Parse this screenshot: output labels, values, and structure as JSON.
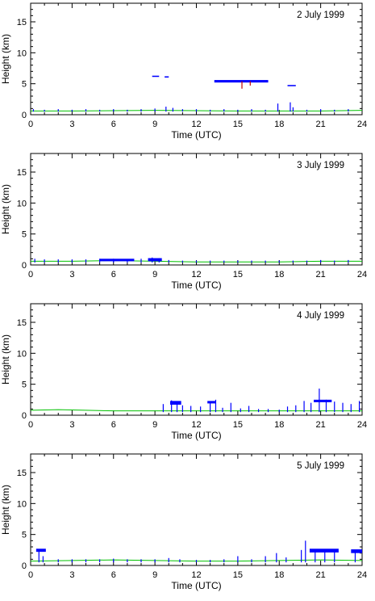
{
  "chart_data": [
    {
      "type": "scatter",
      "title": "2 July 1999",
      "xlabel": "Time (UTC)",
      "ylabel": "Height (km)",
      "xlim": [
        0,
        24
      ],
      "ylim": [
        0,
        18
      ],
      "xticks": [
        0,
        3,
        6,
        9,
        12,
        15,
        18,
        21,
        24
      ],
      "yticks": [
        0,
        5,
        10,
        15
      ],
      "grid": false,
      "series": [
        {
          "color": "#00c000",
          "line": [
            [
              0,
              0.6
            ],
            [
              3,
              0.6
            ],
            [
              6,
              0.65
            ],
            [
              9,
              0.7
            ],
            [
              12,
              0.65
            ],
            [
              15,
              0.6
            ],
            [
              18,
              0.6
            ],
            [
              21,
              0.6
            ],
            [
              24,
              0.7
            ]
          ]
        },
        {
          "color": "#0000ff",
          "segments": [
            [
              0.2,
              0.5,
              0.9
            ],
            [
              1.0,
              0.5,
              0.8
            ],
            [
              2.0,
              0.5,
              0.9
            ],
            [
              3.0,
              0.5,
              0.8
            ],
            [
              4.0,
              0.5,
              0.9
            ],
            [
              5.0,
              0.5,
              0.8
            ],
            [
              6.0,
              0.5,
              0.9
            ],
            [
              7.0,
              0.5,
              0.8
            ],
            [
              8.0,
              0.5,
              0.9
            ],
            [
              9.0,
              0.5,
              1.0
            ],
            [
              9.8,
              0.5,
              1.3
            ],
            [
              10.3,
              0.5,
              1.1
            ],
            [
              11.0,
              0.5,
              0.9
            ],
            [
              12.0,
              0.5,
              0.9
            ],
            [
              13.0,
              0.5,
              0.8
            ],
            [
              14.0,
              0.5,
              0.9
            ],
            [
              15.0,
              0.5,
              0.8
            ],
            [
              16.0,
              0.5,
              0.9
            ],
            [
              17.0,
              0.5,
              0.8
            ],
            [
              17.9,
              0.5,
              1.8
            ],
            [
              18.8,
              0.5,
              2.0
            ],
            [
              19.0,
              0.5,
              1.2
            ],
            [
              20.0,
              0.5,
              0.8
            ],
            [
              21.0,
              0.5,
              0.9
            ],
            [
              22.0,
              0.5,
              0.8
            ],
            [
              23.0,
              0.5,
              0.9
            ]
          ],
          "layers": [
            [
              8.8,
              9.3,
              6.1,
              6.3
            ],
            [
              9.7,
              10.0,
              6.0,
              6.2
            ],
            [
              13.3,
              17.2,
              5.2,
              5.6
            ],
            [
              18.6,
              19.2,
              4.6,
              4.8
            ]
          ]
        },
        {
          "color": "#c00000",
          "segments": [
            [
              15.3,
              4.2,
              5.4
            ],
            [
              15.9,
              4.7,
              5.4
            ]
          ]
        }
      ]
    },
    {
      "type": "scatter",
      "title": "3 July 1999",
      "xlabel": "Time (UTC)",
      "ylabel": "Height (km)",
      "xlim": [
        0,
        24
      ],
      "ylim": [
        0,
        18
      ],
      "xticks": [
        0,
        3,
        6,
        9,
        12,
        15,
        18,
        21,
        24
      ],
      "yticks": [
        0,
        5,
        10,
        15
      ],
      "grid": false,
      "series": [
        {
          "color": "#00c000",
          "line": [
            [
              0,
              0.6
            ],
            [
              3,
              0.6
            ],
            [
              6,
              0.7
            ],
            [
              9,
              0.6
            ],
            [
              12,
              0.5
            ],
            [
              15,
              0.5
            ],
            [
              18,
              0.5
            ],
            [
              21,
              0.6
            ],
            [
              24,
              0.6
            ]
          ]
        },
        {
          "color": "#0000ff",
          "segments": [
            [
              0.3,
              0.4,
              1.0
            ],
            [
              1.0,
              0.4,
              0.9
            ],
            [
              2.0,
              0.4,
              0.9
            ],
            [
              3.0,
              0.4,
              0.9
            ],
            [
              4.0,
              0.4,
              0.9
            ],
            [
              5.0,
              0.4,
              1.0
            ],
            [
              6.0,
              0.4,
              1.0
            ],
            [
              7.0,
              0.4,
              0.9
            ],
            [
              8.0,
              0.4,
              1.0
            ],
            [
              8.8,
              0.4,
              1.2
            ],
            [
              9.3,
              0.4,
              1.1
            ],
            [
              10.0,
              0.4,
              0.8
            ],
            [
              11.0,
              0.4,
              0.7
            ],
            [
              12.0,
              0.4,
              0.7
            ],
            [
              13.0,
              0.4,
              0.7
            ],
            [
              14.0,
              0.4,
              0.7
            ],
            [
              15.0,
              0.4,
              0.7
            ],
            [
              16.0,
              0.4,
              0.7
            ],
            [
              17.0,
              0.4,
              0.7
            ],
            [
              18.0,
              0.4,
              0.7
            ],
            [
              19.0,
              0.4,
              0.7
            ],
            [
              20.0,
              0.4,
              0.7
            ],
            [
              21.0,
              0.4,
              0.8
            ],
            [
              22.0,
              0.4,
              0.7
            ],
            [
              23.0,
              0.4,
              0.8
            ]
          ],
          "layers": [
            [
              5.0,
              7.5,
              0.6,
              1.0
            ],
            [
              8.5,
              9.5,
              0.6,
              1.1
            ]
          ]
        }
      ]
    },
    {
      "type": "scatter",
      "title": "4 July 1999",
      "xlabel": "Time (UTC)",
      "ylabel": "Height (km)",
      "xlim": [
        0,
        24
      ],
      "ylim": [
        0,
        18
      ],
      "xticks": [
        0,
        3,
        6,
        9,
        12,
        15,
        18,
        21,
        24
      ],
      "yticks": [
        0,
        5,
        10,
        15
      ],
      "grid": false,
      "series": [
        {
          "color": "#00c000",
          "line": [
            [
              0,
              0.8
            ],
            [
              2,
              0.9
            ],
            [
              4,
              0.8
            ],
            [
              6,
              0.7
            ],
            [
              9,
              0.7
            ],
            [
              12,
              0.7
            ],
            [
              15,
              0.7
            ],
            [
              18,
              0.7
            ],
            [
              21,
              0.7
            ],
            [
              24,
              0.7
            ]
          ]
        },
        {
          "color": "#0000ff",
          "segments": [
            [
              9.6,
              0.5,
              1.8
            ],
            [
              10.2,
              0.5,
              2.4
            ],
            [
              10.6,
              0.5,
              2.0
            ],
            [
              11.0,
              0.5,
              1.6
            ],
            [
              11.6,
              0.5,
              1.5
            ],
            [
              12.3,
              0.5,
              1.4
            ],
            [
              13.0,
              0.5,
              2.0
            ],
            [
              13.4,
              0.5,
              2.5
            ],
            [
              13.9,
              0.5,
              1.2
            ],
            [
              14.5,
              0.5,
              2.0
            ],
            [
              15.2,
              0.5,
              1.1
            ],
            [
              15.8,
              0.5,
              1.5
            ],
            [
              16.5,
              0.5,
              1.0
            ],
            [
              17.2,
              0.5,
              1.0
            ],
            [
              18.0,
              0.5,
              0.9
            ],
            [
              18.6,
              0.5,
              1.4
            ],
            [
              19.2,
              0.5,
              1.6
            ],
            [
              19.8,
              0.5,
              2.3
            ],
            [
              20.3,
              0.5,
              2.0
            ],
            [
              20.9,
              0.5,
              4.3
            ],
            [
              21.4,
              0.5,
              2.5
            ],
            [
              22.0,
              0.5,
              2.2
            ],
            [
              22.6,
              0.5,
              2.0
            ],
            [
              23.2,
              0.5,
              1.8
            ],
            [
              23.8,
              0.5,
              2.3
            ]
          ],
          "layers": [
            [
              10.1,
              10.9,
              1.7,
              2.3
            ],
            [
              20.5,
              21.8,
              2.1,
              2.5
            ],
            [
              12.8,
              13.4,
              1.9,
              2.3
            ]
          ]
        }
      ]
    },
    {
      "type": "scatter",
      "title": "5 July 1999",
      "xlabel": "Time (UTC)",
      "ylabel": "Height (km)",
      "xlim": [
        0,
        24
      ],
      "ylim": [
        0,
        18
      ],
      "xticks": [
        0,
        3,
        6,
        9,
        12,
        15,
        18,
        21,
        24
      ],
      "yticks": [
        0,
        5,
        10,
        15
      ],
      "grid": false,
      "series": [
        {
          "color": "#00c000",
          "line": [
            [
              0,
              0.7
            ],
            [
              3,
              0.8
            ],
            [
              6,
              0.9
            ],
            [
              9,
              0.8
            ],
            [
              12,
              0.7
            ],
            [
              15,
              0.7
            ],
            [
              18,
              0.8
            ],
            [
              21,
              0.9
            ],
            [
              24,
              0.8
            ]
          ]
        },
        {
          "color": "#0000ff",
          "segments": [
            [
              0.6,
              0.5,
              2.5
            ],
            [
              0.9,
              0.5,
              1.5
            ],
            [
              2.0,
              0.5,
              1.0
            ],
            [
              3.0,
              0.5,
              1.0
            ],
            [
              4.0,
              0.5,
              1.0
            ],
            [
              5.0,
              0.5,
              1.0
            ],
            [
              6.0,
              0.5,
              1.1
            ],
            [
              7.0,
              0.5,
              1.0
            ],
            [
              8.0,
              0.5,
              1.0
            ],
            [
              9.0,
              0.5,
              1.0
            ],
            [
              10.0,
              0.5,
              1.2
            ],
            [
              10.8,
              0.5,
              1.0
            ],
            [
              12.0,
              0.5,
              0.9
            ],
            [
              13.0,
              0.5,
              0.9
            ],
            [
              14.0,
              0.5,
              1.0
            ],
            [
              15.0,
              0.5,
              1.5
            ],
            [
              16.0,
              0.5,
              1.0
            ],
            [
              17.0,
              0.5,
              1.5
            ],
            [
              17.8,
              0.5,
              2.0
            ],
            [
              18.5,
              0.5,
              1.3
            ],
            [
              19.6,
              0.5,
              2.5
            ],
            [
              19.9,
              0.5,
              4.0
            ],
            [
              20.6,
              0.5,
              2.5
            ],
            [
              21.3,
              0.5,
              2.4
            ],
            [
              22.0,
              0.5,
              2.4
            ],
            [
              23.5,
              0.5,
              2.5
            ]
          ],
          "layers": [
            [
              0.4,
              1.1,
              2.2,
              2.7
            ],
            [
              20.2,
              22.3,
              2.1,
              2.7
            ],
            [
              23.2,
              24.0,
              2.0,
              2.6
            ]
          ]
        }
      ]
    }
  ]
}
